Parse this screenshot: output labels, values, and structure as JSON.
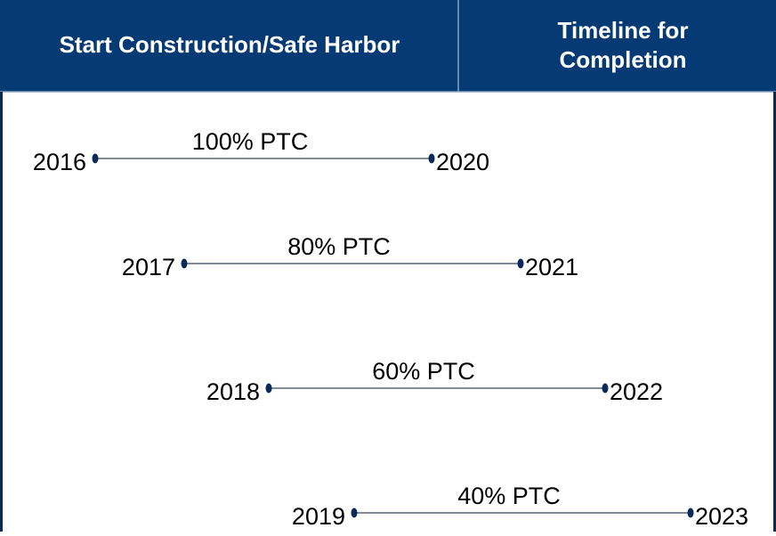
{
  "header": {
    "columns": [
      "Start Construction/Safe Harbor",
      "Timeline for Completion"
    ]
  },
  "rows": [
    {
      "start": "2016",
      "label": "100% PTC",
      "end": "2020"
    },
    {
      "start": "2017",
      "label": "80% PTC",
      "end": "2021"
    },
    {
      "start": "2018",
      "label": "60% PTC",
      "end": "2022"
    },
    {
      "start": "2019",
      "label": "40% PTC",
      "end": "2023"
    }
  ]
}
